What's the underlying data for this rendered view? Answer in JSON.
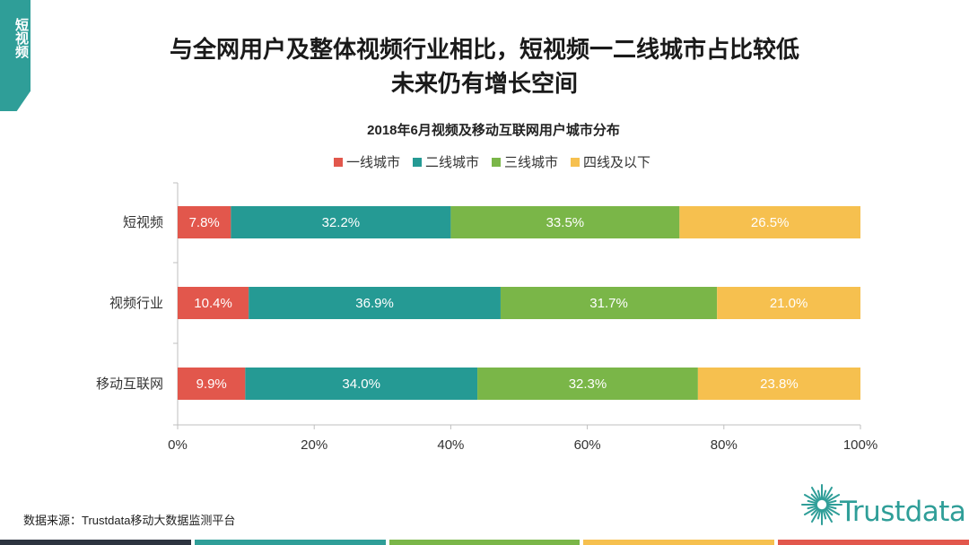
{
  "side_tab": {
    "label": "短视频"
  },
  "headline": {
    "line1": "与全网用户及整体视频行业相比，短视频一二线城市占比较低",
    "line2": "未来仍有增长空间"
  },
  "source": "数据来源：Trustdata移动大数据监测平台",
  "logo": {
    "text": "Trustdata",
    "icon": "sunburst-logo-icon",
    "color": "#2f9e98"
  },
  "footer_colors": [
    "#2d3440",
    "#2f9e98",
    "#7ab648",
    "#f6c04f",
    "#e2574c"
  ],
  "chart_data": {
    "type": "bar",
    "orientation": "horizontal",
    "stacked": true,
    "title": "2018年6月视频及移动互联网用户城市分布",
    "categories": [
      "短视频",
      "视频行业",
      "移动互联网"
    ],
    "series": [
      {
        "name": "一线城市",
        "color": "#e2574c",
        "values": [
          7.8,
          10.4,
          9.9
        ],
        "labels": [
          "7.8%",
          "10.4%",
          "9.9%"
        ]
      },
      {
        "name": "二线城市",
        "color": "#259a94",
        "values": [
          32.2,
          36.9,
          34.0
        ],
        "labels": [
          "32.2%",
          "36.9%",
          "34.0%"
        ]
      },
      {
        "name": "三线城市",
        "color": "#7ab648",
        "values": [
          33.5,
          31.7,
          32.3
        ],
        "labels": [
          "33.5%",
          "31.7%",
          "32.3%"
        ]
      },
      {
        "name": "四线及以下",
        "color": "#f6c04f",
        "values": [
          26.5,
          21.0,
          23.8
        ],
        "labels": [
          "26.5%",
          "21.0%",
          "23.8%"
        ]
      }
    ],
    "xlim": [
      0,
      100
    ],
    "xticks": [
      "0%",
      "20%",
      "40%",
      "60%",
      "80%",
      "100%"
    ],
    "legend_position": "top-center",
    "grid": false
  }
}
